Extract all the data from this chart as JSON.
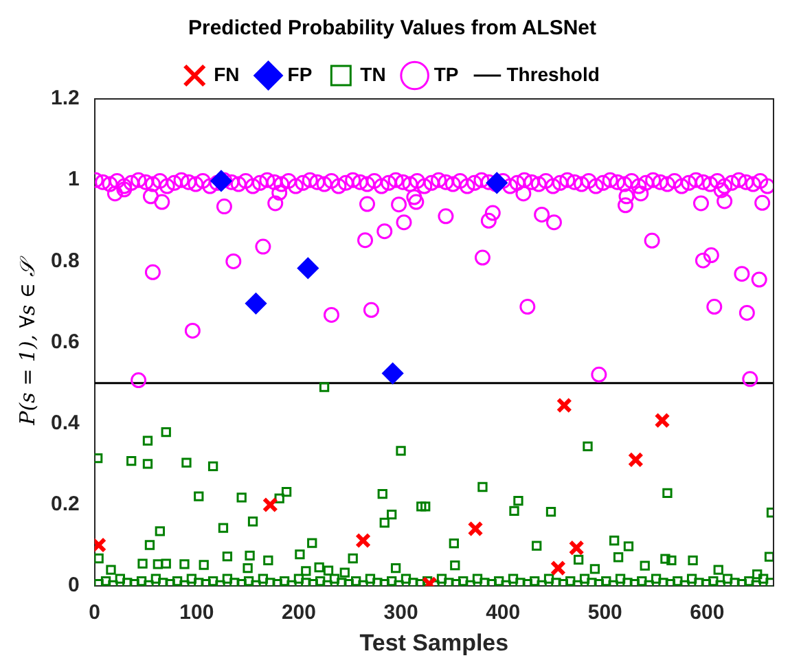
{
  "chart_data": {
    "type": "scatter",
    "title": "Predicted Probability Values from ALSNet",
    "xlabel": "Test Samples",
    "ylabel": "P(s = 1), ∀s ∈ 𝒮",
    "xlim": [
      0,
      665
    ],
    "ylim": [
      0,
      1.2
    ],
    "xticks": [
      0,
      100,
      200,
      300,
      400,
      500,
      600
    ],
    "yticks": [
      0,
      0.2,
      0.4,
      0.6,
      0.8,
      1,
      1.2
    ],
    "grid": false,
    "legend": "top",
    "series": [
      {
        "name": "Threshold",
        "type": "line",
        "marker": "none",
        "color": "#000000",
        "x": [
          0,
          665
        ],
        "values": [
          0.5,
          0.5
        ]
      },
      {
        "name": "TP",
        "marker": "circle",
        "color": "#ff00ff",
        "x": [
          1,
          8,
          15,
          22,
          29,
          36,
          43,
          50,
          57,
          64,
          71,
          78,
          85,
          92,
          99,
          106,
          113,
          120,
          127,
          134,
          141,
          148,
          155,
          162,
          169,
          176,
          183,
          190,
          197,
          204,
          211,
          218,
          225,
          232,
          239,
          246,
          253,
          260,
          267,
          274,
          281,
          288,
          295,
          302,
          309,
          316,
          323,
          330,
          337,
          344,
          351,
          358,
          365,
          372,
          379,
          386,
          393,
          400,
          407,
          414,
          421,
          428,
          435,
          442,
          449,
          456,
          463,
          470,
          477,
          484,
          491,
          498,
          505,
          512,
          519,
          526,
          533,
          540,
          547,
          554,
          561,
          568,
          575,
          582,
          589,
          596,
          603,
          610,
          617,
          624,
          631,
          638,
          645,
          652,
          659,
          20,
          29,
          55,
          66,
          57,
          43,
          96,
          127,
          136,
          165,
          177,
          181,
          232,
          265,
          267,
          271,
          284,
          298,
          303,
          313,
          315,
          344,
          380,
          386,
          390,
          420,
          424,
          438,
          450,
          494,
          520,
          521,
          535,
          546,
          594,
          596,
          604,
          607,
          617,
          634,
          639,
          642,
          651,
          654,
          614
        ],
        "values": [
          1,
          0.995,
          0.99,
          0.998,
          0.985,
          0.993,
          1,
          0.995,
          0.99,
          0.998,
          0.985,
          0.993,
          1,
          0.995,
          0.99,
          0.998,
          0.985,
          0.993,
          1,
          0.995,
          0.99,
          0.998,
          0.985,
          0.993,
          1,
          0.995,
          0.99,
          0.998,
          0.985,
          0.993,
          1,
          0.995,
          0.99,
          0.998,
          0.985,
          0.993,
          1,
          0.995,
          0.99,
          0.998,
          0.985,
          0.993,
          1,
          0.995,
          0.99,
          0.998,
          0.985,
          0.993,
          1,
          0.995,
          0.99,
          0.998,
          0.985,
          0.993,
          1,
          0.995,
          0.99,
          0.998,
          0.985,
          0.993,
          1,
          0.995,
          0.99,
          0.998,
          0.985,
          0.993,
          1,
          0.995,
          0.99,
          0.998,
          0.985,
          0.993,
          1,
          0.995,
          0.99,
          0.998,
          0.985,
          0.993,
          1,
          0.995,
          0.99,
          0.998,
          0.985,
          0.993,
          1,
          0.995,
          0.99,
          0.998,
          0.985,
          0.993,
          1,
          0.995,
          0.99,
          0.998,
          0.985,
          0.967,
          0.977,
          0.96,
          0.946,
          0.773,
          0.507,
          0.629,
          0.935,
          0.8,
          0.836,
          0.943,
          0.969,
          0.668,
          0.852,
          0.941,
          0.68,
          0.874,
          0.94,
          0.896,
          0.958,
          0.946,
          0.911,
          0.809,
          0.9,
          0.919,
          0.967,
          0.688,
          0.915,
          0.896,
          0.521,
          0.938,
          0.96,
          0.967,
          0.851,
          0.943,
          0.802,
          0.815,
          0.688,
          0.948,
          0.769,
          0.673,
          0.51,
          0.755,
          0.944,
          0.975
        ]
      },
      {
        "name": "TN",
        "marker": "square",
        "color": "#008000",
        "x": [
          4,
          11,
          18,
          25,
          32,
          39,
          46,
          53,
          60,
          67,
          74,
          81,
          88,
          95,
          102,
          109,
          116,
          123,
          130,
          137,
          144,
          151,
          158,
          165,
          172,
          179,
          186,
          193,
          200,
          207,
          214,
          221,
          228,
          235,
          242,
          249,
          256,
          263,
          270,
          277,
          284,
          291,
          298,
          305,
          312,
          319,
          326,
          333,
          340,
          347,
          354,
          361,
          368,
          375,
          382,
          389,
          396,
          403,
          410,
          417,
          424,
          431,
          438,
          445,
          452,
          459,
          466,
          473,
          480,
          487,
          494,
          501,
          508,
          515,
          522,
          529,
          536,
          543,
          550,
          557,
          564,
          571,
          578,
          585,
          592,
          599,
          606,
          613,
          620,
          627,
          634,
          641,
          648,
          655,
          662,
          3,
          4,
          16,
          36,
          52,
          52,
          70,
          64,
          54,
          47,
          62,
          70,
          88,
          90,
          116,
          102,
          107,
          126,
          130,
          144,
          155,
          152,
          150,
          170,
          181,
          188,
          201,
          213,
          207,
          220,
          229,
          253,
          245,
          282,
          284,
          291,
          300,
          295,
          320,
          225,
          324,
          380,
          415,
          411,
          447,
          483,
          561,
          352,
          353,
          433,
          474,
          509,
          523,
          513,
          559,
          565,
          586,
          539,
          663,
          661,
          490,
          611,
          649
        ],
        "values": [
          0.005,
          0.012,
          0.002,
          0.018,
          0.008,
          0.005,
          0.012,
          0.002,
          0.018,
          0.008,
          0.005,
          0.012,
          0.002,
          0.018,
          0.008,
          0.005,
          0.012,
          0.002,
          0.018,
          0.008,
          0.005,
          0.012,
          0.002,
          0.018,
          0.008,
          0.005,
          0.012,
          0.002,
          0.018,
          0.008,
          0.005,
          0.012,
          0.002,
          0.018,
          0.008,
          0.005,
          0.012,
          0.002,
          0.018,
          0.008,
          0.005,
          0.012,
          0.002,
          0.018,
          0.008,
          0.005,
          0.012,
          0.002,
          0.018,
          0.008,
          0.005,
          0.012,
          0.002,
          0.018,
          0.008,
          0.005,
          0.012,
          0.002,
          0.018,
          0.008,
          0.005,
          0.012,
          0.002,
          0.018,
          0.008,
          0.005,
          0.012,
          0.002,
          0.018,
          0.008,
          0.005,
          0.012,
          0.002,
          0.018,
          0.008,
          0.005,
          0.012,
          0.002,
          0.018,
          0.008,
          0.005,
          0.012,
          0.002,
          0.018,
          0.008,
          0.005,
          0.012,
          0.002,
          0.018,
          0.008,
          0.005,
          0.012,
          0.002,
          0.018,
          0.008,
          0.315,
          0.068,
          0.04,
          0.308,
          0.358,
          0.301,
          0.379,
          0.135,
          0.101,
          0.055,
          0.054,
          0.055,
          0.054,
          0.304,
          0.295,
          0.221,
          0.052,
          0.143,
          0.073,
          0.218,
          0.159,
          0.075,
          0.044,
          0.063,
          0.216,
          0.232,
          0.078,
          0.106,
          0.037,
          0.046,
          0.038,
          0.068,
          0.033,
          0.227,
          0.156,
          0.176,
          0.333,
          0.044,
          0.196,
          0.49,
          0.196,
          0.244,
          0.21,
          0.185,
          0.183,
          0.344,
          0.229,
          0.105,
          0.051,
          0.099,
          0.065,
          0.112,
          0.098,
          0.071,
          0.067,
          0.063,
          0.063,
          0.05,
          0.181,
          0.072,
          0.042,
          0.04,
          0.029
        ]
      },
      {
        "name": "FP",
        "marker": "diamond",
        "color": "#0000ff",
        "x": [
          124,
          158,
          209,
          292,
          394
        ],
        "values": [
          0.998,
          0.696,
          0.783,
          0.524,
          0.993
        ]
      },
      {
        "name": "FN",
        "marker": "cross",
        "color": "#ff0000",
        "x": [
          4,
          172,
          263,
          373,
          328,
          454,
          472,
          530,
          556,
          460
        ],
        "values": [
          0.101,
          0.2,
          0.112,
          0.141,
          0.005,
          0.044,
          0.094,
          0.311,
          0.408,
          0.445
        ]
      }
    ]
  }
}
